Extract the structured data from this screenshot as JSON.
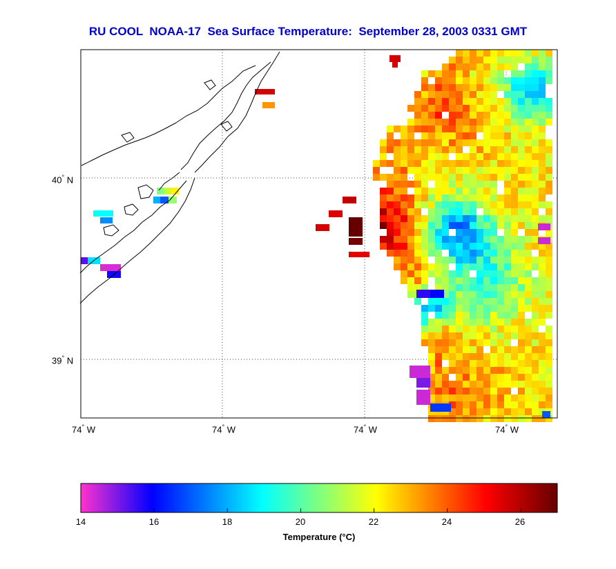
{
  "title": "RU COOL  NOAA-17  Sea Surface Temperature:  September 28, 2003 0331 GMT",
  "lat_labels": [
    {
      "text": "40",
      "deg": "°",
      "hem": "N",
      "lat": 40.0
    },
    {
      "text": "39",
      "deg": "°",
      "hem": "N",
      "lat": 39.0
    }
  ],
  "lon_labels": [
    {
      "text": "74",
      "deg": "°",
      "hem": "W"
    },
    {
      "text": "74",
      "deg": "°",
      "hem": "W"
    },
    {
      "text": "74",
      "deg": "°",
      "hem": "W"
    },
    {
      "text": "74",
      "deg": "°",
      "hem": "W"
    }
  ],
  "colorbar": {
    "min": 14,
    "max": 27,
    "ticks": [
      "14",
      "16",
      "18",
      "20",
      "22",
      "24",
      "26"
    ],
    "label": "Temperature (°C)"
  },
  "colors": {
    "title": "#0000cc",
    "colormap": [
      "#ff33cc",
      "#0000ff",
      "#00ffff",
      "#ffff00",
      "#ff0000",
      "#660000"
    ]
  }
}
